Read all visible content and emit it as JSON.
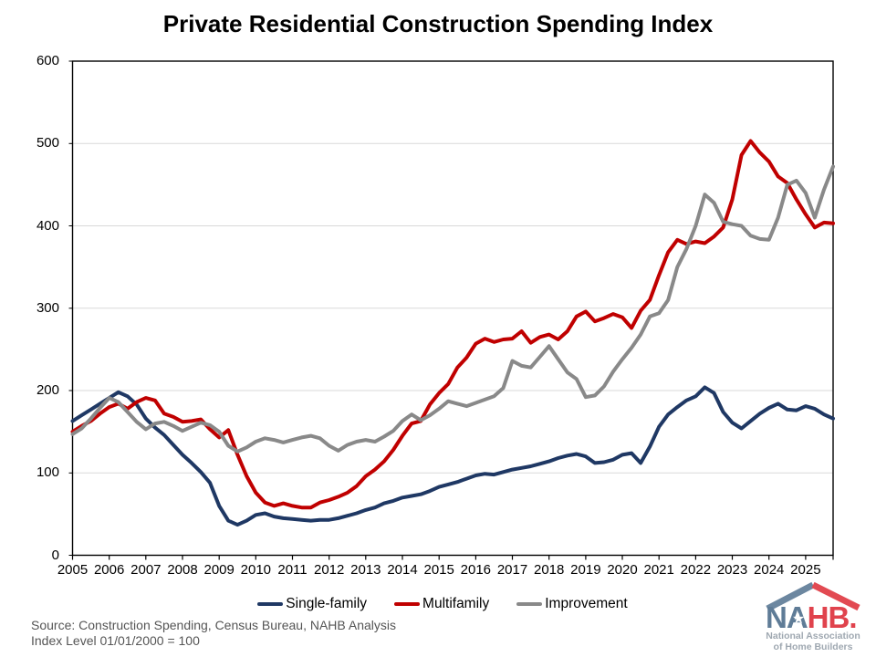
{
  "title": "Private Residential Construction Spending Index",
  "source_line1": "Source: Construction Spending, Census Bureau, NAHB Analysis",
  "source_line2": "Index Level 01/01/2000 = 100",
  "logo": {
    "na": "NA",
    "hb": "HB.",
    "star": "★",
    "tagline1": "National Association",
    "tagline2": "of Home Builders",
    "roof_left_color": "#6C87A0",
    "roof_right_color": "#E24A52",
    "na_color": "#5F7C97",
    "hb_color": "#E0434D",
    "tagline_color": "#9FA8B1"
  },
  "chart_data": {
    "type": "line",
    "title": "Private Residential Construction Spending Index",
    "xlabel": "",
    "ylabel": "",
    "x_start": 2005,
    "x_step": 0.25,
    "x_tick_labels": [
      "2005",
      "2006",
      "2007",
      "2008",
      "2009",
      "2010",
      "2011",
      "2012",
      "2013",
      "2014",
      "2015",
      "2016",
      "2017",
      "2018",
      "2019",
      "2020",
      "2021",
      "2022",
      "2023",
      "2024",
      "2025"
    ],
    "y_ticks": [
      0,
      100,
      200,
      300,
      400,
      500,
      600
    ],
    "ylim": [
      0,
      600
    ],
    "grid": "horizontal-major",
    "grid_color": "#D9D9D9",
    "axis_color": "#000000",
    "legend_position": "bottom",
    "series": [
      {
        "name": "Single-family",
        "color": "#1F3864",
        "values": [
          163,
          170,
          177,
          184,
          191,
          198,
          193,
          183,
          166,
          155,
          146,
          134,
          122,
          112,
          101,
          88,
          60,
          42,
          37,
          42,
          49,
          51,
          47,
          45,
          44,
          43,
          42,
          43,
          43,
          45,
          48,
          51,
          55,
          58,
          63,
          66,
          70,
          72,
          74,
          78,
          83,
          86,
          89,
          93,
          97,
          99,
          98,
          101,
          104,
          106,
          108,
          111,
          114,
          118,
          121,
          123,
          120,
          112,
          113,
          116,
          122,
          124,
          112,
          132,
          156,
          171,
          180,
          188,
          193,
          204,
          197,
          174,
          161,
          154,
          163,
          172,
          179,
          184,
          177,
          176,
          181,
          178,
          171,
          166
        ]
      },
      {
        "name": "Multifamily",
        "color": "#C00000",
        "values": [
          150,
          157,
          163,
          172,
          180,
          184,
          178,
          186,
          191,
          188,
          172,
          168,
          162,
          163,
          165,
          153,
          143,
          152,
          122,
          96,
          76,
          64,
          60,
          63,
          60,
          58,
          58,
          64,
          67,
          71,
          76,
          84,
          96,
          104,
          114,
          128,
          145,
          160,
          163,
          183,
          197,
          208,
          228,
          240,
          257,
          263,
          259,
          262,
          263,
          272,
          258,
          265,
          268,
          262,
          272,
          290,
          296,
          284,
          288,
          293,
          289,
          276,
          297,
          310,
          340,
          368,
          383,
          378,
          381,
          379,
          387,
          398,
          432,
          486,
          503,
          489,
          478,
          460,
          452,
          432,
          414,
          398,
          404,
          403
        ]
      },
      {
        "name": "Improvement",
        "color": "#898989",
        "values": [
          147,
          154,
          166,
          179,
          191,
          186,
          174,
          162,
          153,
          160,
          162,
          157,
          151,
          156,
          161,
          158,
          150,
          133,
          126,
          131,
          138,
          142,
          140,
          137,
          140,
          143,
          145,
          142,
          133,
          127,
          134,
          138,
          140,
          138,
          144,
          151,
          163,
          171,
          164,
          170,
          178,
          187,
          184,
          181,
          185,
          189,
          193,
          203,
          236,
          230,
          228,
          241,
          254,
          238,
          222,
          214,
          192,
          194,
          205,
          223,
          238,
          252,
          268,
          290,
          294,
          310,
          350,
          372,
          400,
          438,
          428,
          405,
          402,
          400,
          388,
          384,
          383,
          410,
          450,
          455,
          440,
          410,
          444,
          472
        ]
      }
    ]
  }
}
